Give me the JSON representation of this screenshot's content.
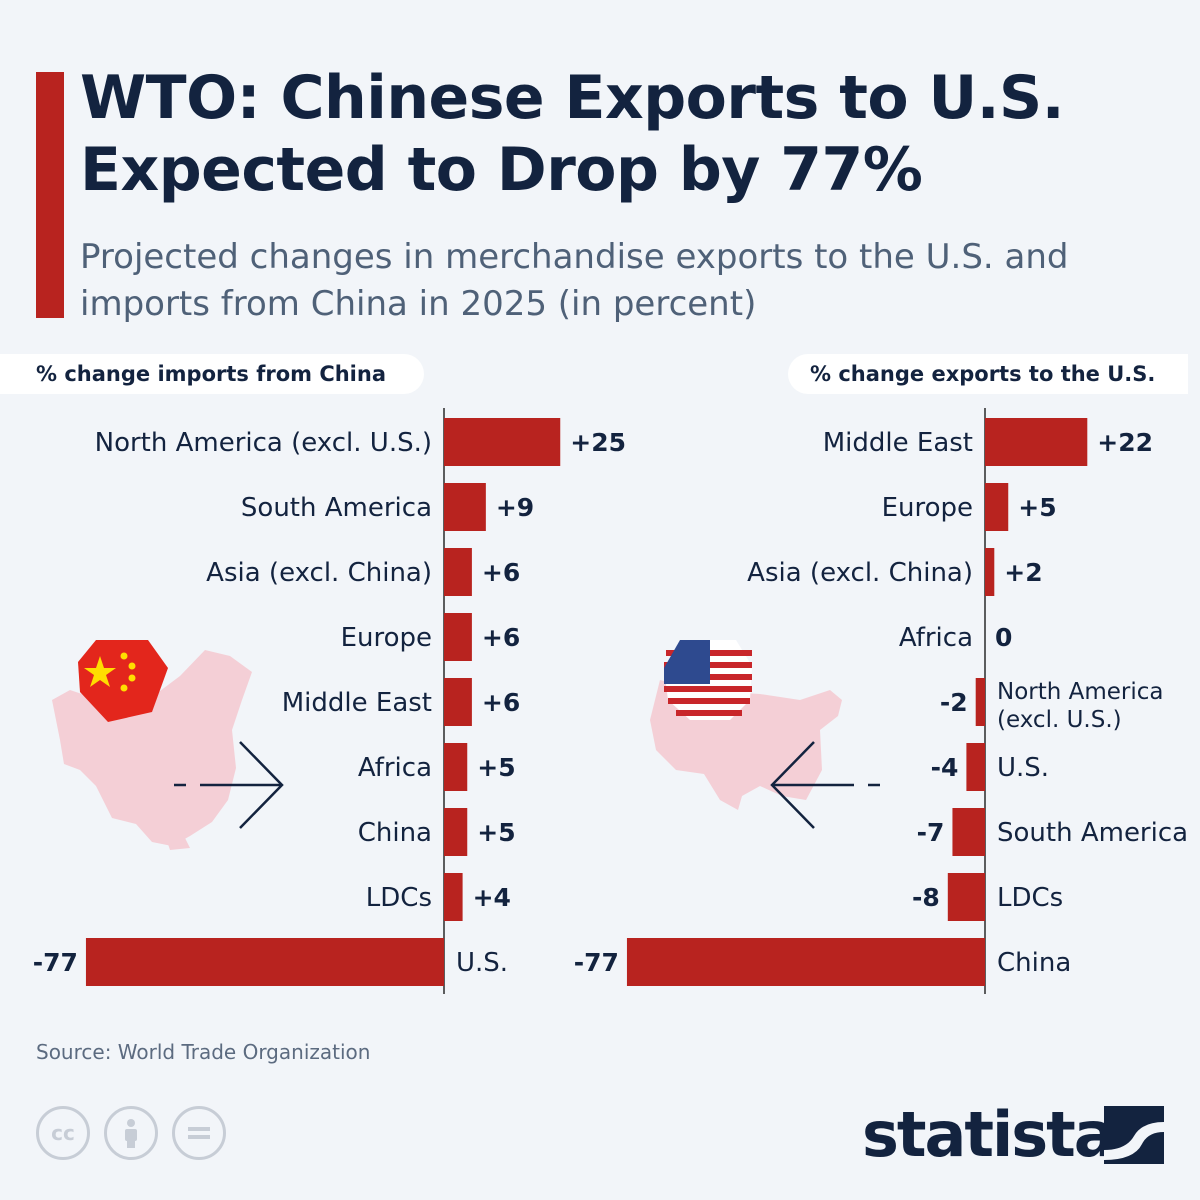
{
  "title": "WTO: Chinese Exports to U.S. Expected to Drop by 77%",
  "subtitle": "Projected changes in merchandise exports to the U.S. and imports from China in 2025 (in percent)",
  "source": "Source: World Trade Organization",
  "brand": "statista",
  "colors": {
    "bar": "#b8231f",
    "accent": "#b8231f",
    "text": "#13233f",
    "map": "#f4cfd6"
  },
  "icons": [
    "cc-icon",
    "attribution-icon",
    "no-derivatives-icon",
    "statista-logo-icon",
    "china-flag-icon",
    "us-flag-icon",
    "china-map-icon",
    "us-map-icon",
    "arrow-right-icon",
    "arrow-left-icon"
  ],
  "chart_data": [
    {
      "type": "bar",
      "orientation": "horizontal",
      "title": "% change imports from China",
      "categories": [
        "North America (excl. U.S.)",
        "South America",
        "Asia (excl. China)",
        "Europe",
        "Middle East",
        "Africa",
        "China",
        "LDCs",
        "U.S."
      ],
      "values": [
        25,
        9,
        6,
        6,
        6,
        5,
        5,
        4,
        -77
      ],
      "value_labels": [
        "+25",
        "+9",
        "+6",
        "+6",
        "+6",
        "+5",
        "+5",
        "+4",
        "-77"
      ]
    },
    {
      "type": "bar",
      "orientation": "horizontal",
      "title": "% change exports to the U.S.",
      "categories": [
        "Middle East",
        "Europe",
        "Asia (excl. China)",
        "Africa",
        "North America (excl. U.S.)",
        "U.S.",
        "South America",
        "LDCs",
        "China"
      ],
      "values": [
        22,
        5,
        2,
        0,
        -2,
        -4,
        -7,
        -8,
        -77
      ],
      "value_labels": [
        "+22",
        "+5",
        "+2",
        "0",
        "-2",
        "-4",
        "-7",
        "-8",
        "-77"
      ]
    }
  ]
}
